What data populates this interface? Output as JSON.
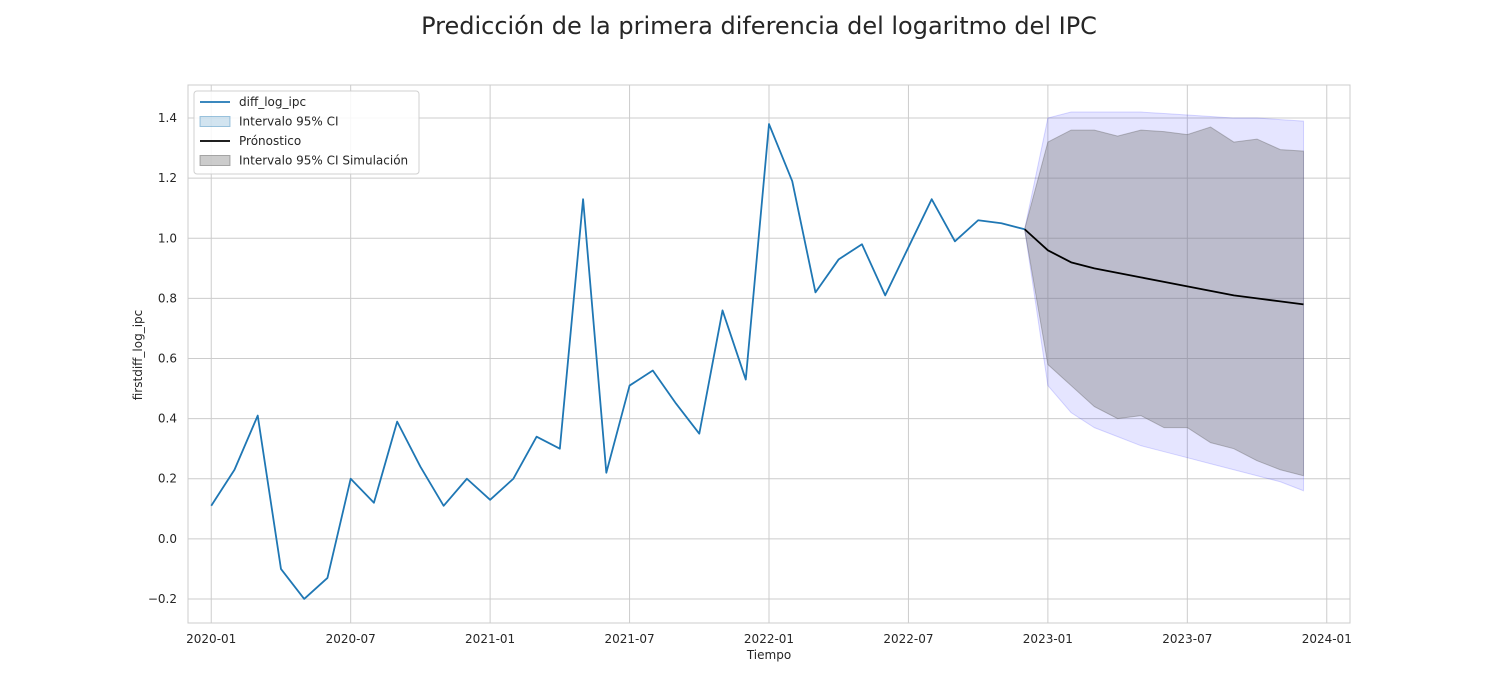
{
  "chart_data": {
    "type": "line",
    "title": "Predicción de la primera diferencia del logaritmo del IPC",
    "xlabel": "Tiempo",
    "ylabel": "firstdiff_log_ipc",
    "xlim": [
      "2019-12",
      "2024-02"
    ],
    "ylim": [
      -0.28,
      1.51
    ],
    "x_ticks": [
      "2020-01",
      "2020-07",
      "2021-01",
      "2021-07",
      "2022-01",
      "2022-07",
      "2023-01",
      "2023-07",
      "2024-01"
    ],
    "y_ticks": [
      "−0.2",
      "0.0",
      "0.2",
      "0.4",
      "0.6",
      "0.8",
      "1.0",
      "1.2",
      "1.4"
    ],
    "y_tick_values": [
      -0.2,
      0.0,
      0.2,
      0.4,
      0.6,
      0.8,
      1.0,
      1.2,
      1.4
    ],
    "grid": true,
    "legend_position": "top-left",
    "series": [
      {
        "name": "diff_log_ipc",
        "kind": "line",
        "color": "#1f77b4",
        "x": [
          "2020-01",
          "2020-02",
          "2020-03",
          "2020-04",
          "2020-05",
          "2020-06",
          "2020-07",
          "2020-08",
          "2020-09",
          "2020-10",
          "2020-11",
          "2020-12",
          "2021-01",
          "2021-02",
          "2021-03",
          "2021-04",
          "2021-05",
          "2021-06",
          "2021-07",
          "2021-08",
          "2021-09",
          "2021-10",
          "2021-11",
          "2021-12",
          "2022-01",
          "2022-02",
          "2022-03",
          "2022-04",
          "2022-05",
          "2022-06",
          "2022-07",
          "2022-08",
          "2022-09",
          "2022-10",
          "2022-11",
          "2022-12"
        ],
        "y": [
          0.11,
          0.23,
          0.41,
          -0.1,
          -0.2,
          -0.13,
          0.2,
          0.12,
          0.39,
          0.24,
          0.11,
          0.2,
          0.13,
          0.2,
          0.34,
          0.3,
          1.13,
          0.22,
          0.51,
          0.56,
          0.45,
          0.35,
          0.76,
          0.53,
          1.38,
          1.19,
          0.82,
          0.93,
          0.98,
          0.81,
          0.97,
          1.13,
          0.99,
          1.06,
          1.05,
          1.03
        ]
      },
      {
        "name": "Intervalo 95% CI",
        "kind": "band",
        "color": "#0000ff",
        "x": [
          "2022-12",
          "2023-01",
          "2023-02",
          "2023-03",
          "2023-04",
          "2023-05",
          "2023-06",
          "2023-07",
          "2023-08",
          "2023-09",
          "2023-10",
          "2023-11",
          "2023-12"
        ],
        "lower": [
          1.03,
          0.51,
          0.42,
          0.37,
          0.34,
          0.31,
          0.29,
          0.27,
          0.25,
          0.23,
          0.21,
          0.19,
          0.16
        ],
        "upper": [
          1.03,
          1.4,
          1.42,
          1.42,
          1.42,
          1.42,
          1.415,
          1.41,
          1.405,
          1.4,
          1.4,
          1.395,
          1.39
        ]
      },
      {
        "name": "Prónostico",
        "kind": "line",
        "color": "#000000",
        "x": [
          "2022-12",
          "2023-01",
          "2023-02",
          "2023-03",
          "2023-04",
          "2023-05",
          "2023-06",
          "2023-07",
          "2023-08",
          "2023-09",
          "2023-10",
          "2023-11",
          "2023-12"
        ],
        "y": [
          1.03,
          0.96,
          0.92,
          0.9,
          0.885,
          0.87,
          0.855,
          0.84,
          0.825,
          0.81,
          0.8,
          0.79,
          0.78
        ]
      },
      {
        "name": "Intervalo 95% CI Simulación",
        "kind": "band",
        "color": "#808080",
        "x": [
          "2022-12",
          "2023-01",
          "2023-02",
          "2023-03",
          "2023-04",
          "2023-05",
          "2023-06",
          "2023-07",
          "2023-08",
          "2023-09",
          "2023-10",
          "2023-11",
          "2023-12"
        ],
        "lower": [
          1.03,
          0.58,
          0.51,
          0.44,
          0.4,
          0.41,
          0.37,
          0.37,
          0.32,
          0.3,
          0.26,
          0.23,
          0.21
        ],
        "upper": [
          1.03,
          1.32,
          1.36,
          1.36,
          1.34,
          1.36,
          1.355,
          1.345,
          1.37,
          1.32,
          1.33,
          1.295,
          1.29
        ]
      }
    ]
  }
}
